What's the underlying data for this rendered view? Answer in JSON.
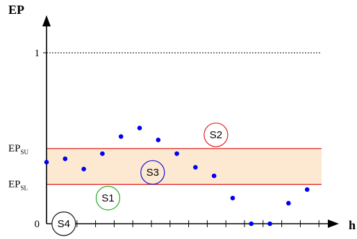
{
  "chart_data": {
    "type": "scatter",
    "title": "",
    "ylabel": "EP",
    "xlabel": "h",
    "ylim": [
      0,
      1.15
    ],
    "y_ticks": [
      {
        "value": 1,
        "label": "1"
      },
      {
        "value": 0,
        "label": "0"
      }
    ],
    "thresholds": {
      "upper": {
        "value": 0.44,
        "label_main": "EP",
        "label_sub": "SU"
      },
      "lower": {
        "value": 0.23,
        "label_main": "EP",
        "label_sub": "SL"
      },
      "line_color": "#dd2222",
      "band_fill": "#fde9d2",
      "reference_line": {
        "value": 1,
        "style": "dotted"
      }
    },
    "point_color": "#0000ee",
    "points": [
      {
        "h": 0,
        "ep": 0.36
      },
      {
        "h": 1,
        "ep": 0.38
      },
      {
        "h": 2,
        "ep": 0.32
      },
      {
        "h": 3,
        "ep": 0.41
      },
      {
        "h": 4,
        "ep": 0.51
      },
      {
        "h": 5,
        "ep": 0.56
      },
      {
        "h": 6,
        "ep": 0.49
      },
      {
        "h": 7,
        "ep": 0.41
      },
      {
        "h": 8,
        "ep": 0.33
      },
      {
        "h": 9,
        "ep": 0.28
      },
      {
        "h": 10,
        "ep": 0.15
      },
      {
        "h": 11,
        "ep": 0.0
      },
      {
        "h": 12,
        "ep": 0.0
      },
      {
        "h": 13,
        "ep": 0.12
      },
      {
        "h": 14,
        "ep": 0.2
      }
    ],
    "x_tick_count": 14,
    "states": [
      {
        "label": "S1",
        "color": "#22aa22",
        "h": 3.3,
        "ep": 0.15
      },
      {
        "label": "S2",
        "color": "#dd2222",
        "h": 9.1,
        "ep": 0.52
      },
      {
        "label": "S3",
        "color": "#1111dd",
        "h": 5.7,
        "ep": 0.3
      },
      {
        "label": "S4",
        "color": "#111111",
        "h": 1.0,
        "ep": 0.0
      }
    ]
  }
}
